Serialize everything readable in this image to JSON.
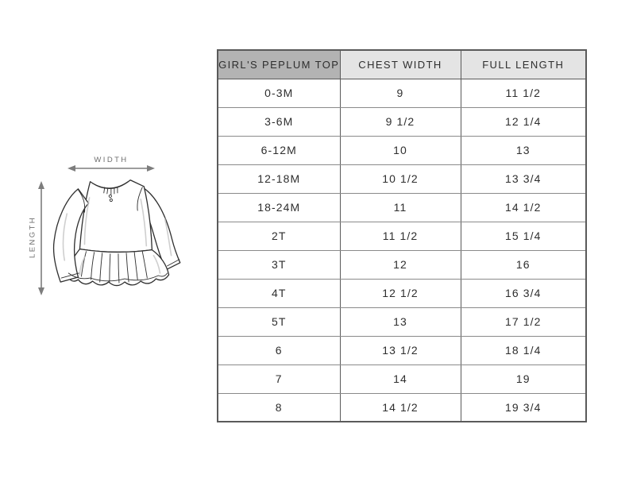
{
  "figure": {
    "illustration": "girls-peplum-top-line-drawing",
    "width_label": "WIDTH",
    "length_label": "LENGTH"
  },
  "size_chart": {
    "columns": [
      "GIRL'S PEPLUM TOP",
      "CHEST WIDTH",
      "FULL LENGTH"
    ],
    "rows": [
      {
        "size": "0-3M",
        "chest_width": "9",
        "full_length": "11 1/2"
      },
      {
        "size": "3-6M",
        "chest_width": "9 1/2",
        "full_length": "12 1/4"
      },
      {
        "size": "6-12M",
        "chest_width": "10",
        "full_length": "13"
      },
      {
        "size": "12-18M",
        "chest_width": "10 1/2",
        "full_length": "13 3/4"
      },
      {
        "size": "18-24M",
        "chest_width": "11",
        "full_length": "14 1/2"
      },
      {
        "size": "2T",
        "chest_width": "11 1/2",
        "full_length": "15 1/4"
      },
      {
        "size": "3T",
        "chest_width": "12",
        "full_length": "16"
      },
      {
        "size": "4T",
        "chest_width": "12 1/2",
        "full_length": "16 3/4"
      },
      {
        "size": "5T",
        "chest_width": "13",
        "full_length": "17 1/2"
      },
      {
        "size": "6",
        "chest_width": "13 1/2",
        "full_length": "18 1/4"
      },
      {
        "size": "7",
        "chest_width": "14",
        "full_length": "19"
      },
      {
        "size": "8",
        "chest_width": "14 1/2",
        "full_length": "19 3/4"
      }
    ]
  },
  "colors": {
    "header_primary_bg": "#b3b3b3",
    "header_secondary_bg": "#e4e4e4",
    "grid_vertical": "#5a5a5a",
    "grid_horizontal": "#8a8a8a",
    "text": "#2e2e2e",
    "arrow_gray": "#7d7d7d",
    "label_gray": "#6e6e6e",
    "sketch_line": "#2f2f2f"
  },
  "chart_data": {
    "type": "table",
    "title": "GIRL'S PEPLUM TOP",
    "columns": [
      "GIRL'S PEPLUM TOP",
      "CHEST WIDTH",
      "FULL LENGTH"
    ],
    "rows": [
      [
        "0-3M",
        "9",
        "11 1/2"
      ],
      [
        "3-6M",
        "9 1/2",
        "12 1/4"
      ],
      [
        "6-12M",
        "10",
        "13"
      ],
      [
        "12-18M",
        "10 1/2",
        "13 3/4"
      ],
      [
        "18-24M",
        "11",
        "14 1/2"
      ],
      [
        "2T",
        "11 1/2",
        "15 1/4"
      ],
      [
        "3T",
        "12",
        "16"
      ],
      [
        "4T",
        "12 1/2",
        "16 3/4"
      ],
      [
        "5T",
        "13",
        "17 1/2"
      ],
      [
        "6",
        "13 1/2",
        "18 1/4"
      ],
      [
        "7",
        "14",
        "19"
      ],
      [
        "8",
        "14 1/2",
        "19 3/4"
      ]
    ]
  }
}
